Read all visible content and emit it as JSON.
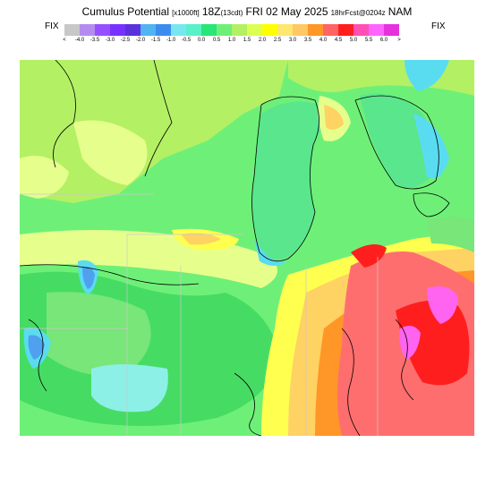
{
  "header": {
    "product": "Cumulus Potential",
    "units": "[x1000ft]",
    "valid_time": "18Z",
    "local_time": "(13cdt)",
    "date": "FRI 02 May 2025",
    "forecast": "18hrFcst@0204z",
    "model": "NAM"
  },
  "fix_left": "FIX",
  "fix_right": "FIX",
  "colorbar": {
    "colors": [
      "#c8c8c8",
      "#b48cf0",
      "#9650ff",
      "#7832ff",
      "#5a32dc",
      "#50b4f0",
      "#3c8cf0",
      "#78e6f0",
      "#5af0c8",
      "#28e678",
      "#6ef078",
      "#b4f064",
      "#dcff50",
      "#ffff00",
      "#ffe66e",
      "#ffc864",
      "#ff9628",
      "#ff6464",
      "#ff1e1e",
      "#ff50b4",
      "#ff64ff",
      "#e632dc"
    ],
    "labels": [
      "<",
      "-4.0",
      "-3.5",
      "-3.0",
      "-2.5",
      "-2.0",
      "-1.5",
      "-1.0",
      "-0.5",
      "0.0",
      "0.5",
      "1.0",
      "1.5",
      "2.0",
      "2.5",
      "3.0",
      "3.5",
      "4.0",
      "4.5",
      "5.0",
      "5.5",
      "6.0",
      ">"
    ]
  },
  "map": {
    "background": "#6ef078",
    "palette": {
      "pale_yellow": "#e6ff8c",
      "yellow_green": "#b4f064",
      "light_green": "#78e678",
      "green": "#46dc64",
      "lake_green": "#5ae68c",
      "cyan": "#5adcf0",
      "light_cyan": "#8cf0e6",
      "blue": "#50a0f0",
      "yellow": "#ffff50",
      "light_orange": "#ffd264",
      "orange": "#ff9628",
      "salmon": "#ff6e6e",
      "red": "#ff1e1e",
      "magenta": "#ff64f0"
    }
  }
}
